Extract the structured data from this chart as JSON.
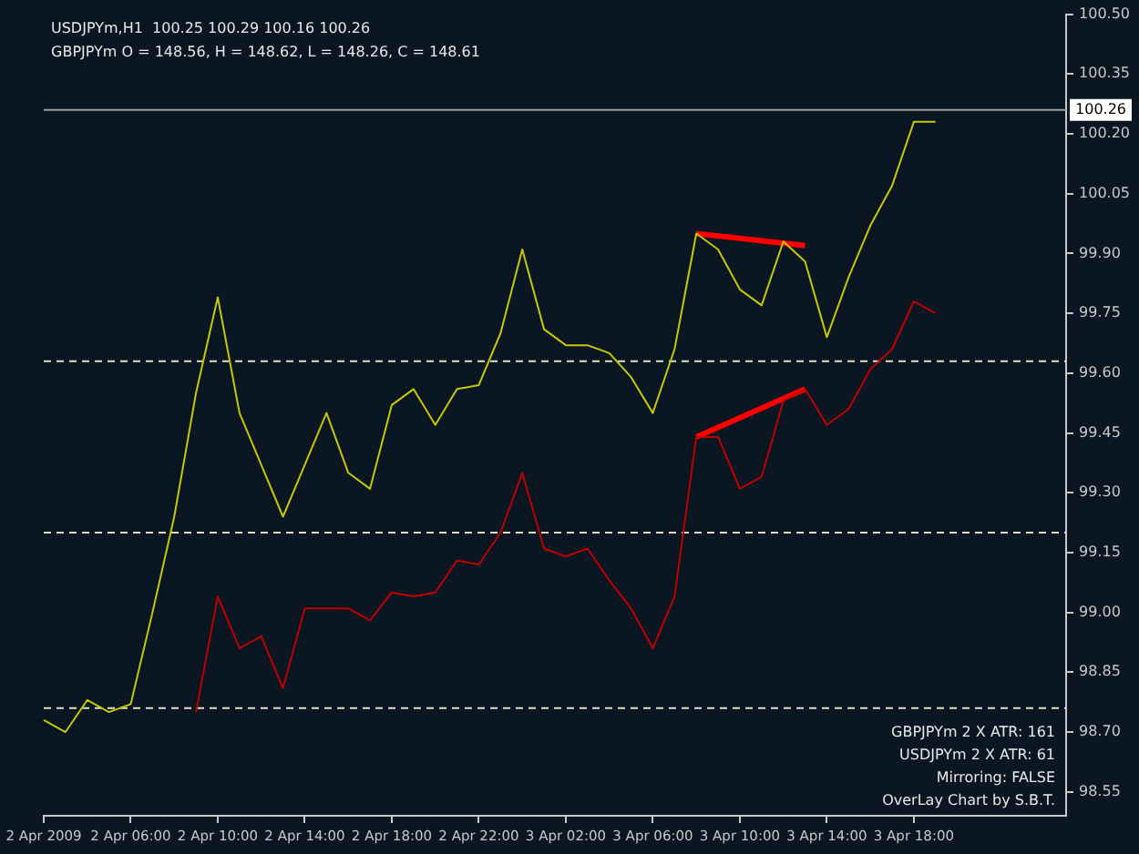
{
  "chart_data": {
    "type": "line",
    "title": "USDJPYm,H1  100.25 100.29 100.16 100.26",
    "subtitle": "GBPJPYm O = 148.56, H = 148.62, L = 148.26, C = 148.61",
    "annotations": [
      "GBPJPYm 2 X ATR: 161",
      "USDJPYm 2 X ATR: 61",
      "Mirroring: FALSE",
      "OverLay Chart by S.B.T."
    ],
    "categories": [
      "2 Apr 2009",
      null,
      null,
      null,
      "2 Apr 06:00",
      null,
      null,
      null,
      "2 Apr 10:00",
      null,
      null,
      null,
      "2 Apr 14:00",
      null,
      null,
      null,
      "2 Apr 18:00",
      null,
      null,
      null,
      "2 Apr 22:00",
      null,
      null,
      null,
      "3 Apr 02:00",
      null,
      null,
      null,
      "3 Apr 06:00",
      null,
      null,
      null,
      "3 Apr 10:00",
      null,
      null,
      null,
      "3 Apr 14:00",
      null,
      null,
      null,
      "3 Apr 18:00",
      null,
      null,
      null,
      null,
      null,
      null,
      null
    ],
    "series": [
      {
        "color": "#c8c800",
        "values": [
          98.73,
          98.7,
          98.78,
          98.75,
          98.77,
          99.0,
          99.24,
          99.55,
          99.79,
          99.5,
          99.37,
          99.24,
          99.37,
          99.5,
          99.35,
          99.31,
          99.52,
          99.56,
          99.47,
          99.56,
          99.57,
          99.7,
          99.91,
          99.71,
          99.67,
          99.67,
          99.65,
          99.59,
          99.5,
          99.66,
          99.95,
          99.91,
          99.81,
          99.77,
          99.93,
          99.88,
          99.69,
          99.84,
          99.97,
          100.07,
          100.23,
          100.23,
          null,
          null,
          null,
          null,
          null,
          null
        ]
      },
      {
        "color": "#c00000",
        "values": [
          null,
          null,
          null,
          null,
          null,
          null,
          null,
          98.75,
          99.04,
          98.91,
          98.94,
          98.81,
          99.01,
          99.01,
          99.01,
          98.98,
          99.05,
          99.04,
          99.05,
          99.13,
          99.12,
          99.2,
          99.35,
          99.16,
          99.14,
          99.16,
          99.08,
          99.01,
          98.91,
          99.04,
          99.44,
          99.44,
          99.31,
          99.34,
          99.53,
          99.56,
          99.47,
          99.51,
          99.61,
          99.66,
          99.78,
          99.75,
          null,
          null,
          null,
          null,
          null,
          null
        ]
      },
      {
        "color": "#ff0000",
        "values": [
          null,
          null,
          null,
          null,
          null,
          null,
          null,
          null,
          null,
          null,
          null,
          null,
          null,
          null,
          null,
          null,
          null,
          null,
          null,
          null,
          null,
          null,
          null,
          null,
          null,
          null,
          null,
          null,
          null,
          null,
          99.95,
          null,
          null,
          null,
          null,
          99.92,
          null,
          null,
          null,
          null,
          null,
          null,
          null,
          null,
          null,
          null,
          null,
          null
        ]
      },
      {
        "color": "#ff0000",
        "values": [
          null,
          null,
          null,
          null,
          null,
          null,
          null,
          null,
          null,
          null,
          null,
          null,
          null,
          null,
          null,
          null,
          null,
          null,
          null,
          null,
          null,
          null,
          null,
          null,
          null,
          null,
          null,
          null,
          null,
          null,
          99.44,
          null,
          null,
          null,
          null,
          99.56,
          null,
          null,
          null,
          null,
          null,
          null,
          null,
          null,
          null,
          null,
          null,
          null
        ]
      }
    ],
    "ylim": [
      98.49,
      100.5
    ],
    "yticks": [
      {
        "value": 100.5,
        "label": "100.50"
      },
      100.35,
      {
        "value": 100.2,
        "label": "100.20"
      },
      100.05,
      {
        "value": 99.9,
        "label": "99.90"
      },
      99.75,
      {
        "value": 99.6,
        "label": "99.60"
      },
      99.45,
      {
        "value": 99.3,
        "label": "99.30"
      },
      99.15,
      {
        "value": 99,
        "label": "99.00"
      },
      98.85,
      {
        "value": 98.7,
        "label": "98.70"
      },
      98.55
    ],
    "ref_lines": [
      {
        "axis": "y",
        "value": 100.26,
        "label": "100.26",
        "color": "#a0a0a0",
        "line_style": "solid"
      },
      {
        "axis": "y",
        "value": 99.63,
        "color": "#e0e0c0",
        "line_style": "dashed"
      },
      {
        "axis": "y",
        "value": 99.2,
        "color": "#e0e0c0",
        "line_style": "dashed"
      },
      {
        "axis": "y",
        "value": 98.76,
        "color": "#e0e0c0",
        "line_style": "dashed"
      }
    ],
    "grid": false,
    "legend": false,
    "marker": "none",
    "line_style": "solid"
  }
}
